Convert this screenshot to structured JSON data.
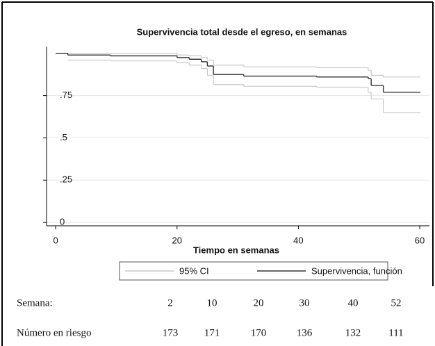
{
  "chart_data": {
    "type": "step",
    "title": "Supervivencia total desde el egreso, en semanas",
    "x_label": "Tiempo en semanas",
    "xlim": [
      -1.5,
      61.6
    ],
    "xticks": [
      0,
      20,
      40,
      60
    ],
    "ylim": [
      -0.02,
      1.04
    ],
    "yticks": [
      0,
      {
        "value": 0.25,
        "label": ".25"
      },
      {
        "value": 0.5,
        "label": ".5"
      },
      {
        "value": 0.75,
        "label": ".75"
      }
    ],
    "grid": true,
    "series": [
      {
        "name": "95% CI",
        "color": "#c8c8c8",
        "x": [
          2,
          9,
          20,
          22,
          24,
          25,
          26,
          31,
          43,
          51.5,
          52,
          54,
          60
        ],
        "values": [
          0.96,
          0.955,
          0.945,
          0.93,
          0.91,
          0.87,
          0.815,
          0.805,
          0.8,
          0.77,
          0.73,
          0.65,
          0.65
        ]
      },
      {
        "name": null,
        "color": "#c8c8c8",
        "x": [
          2,
          20,
          22,
          24,
          25,
          26,
          31,
          43,
          51.5,
          52,
          54,
          60
        ],
        "values": [
          1.0,
          0.99,
          0.985,
          0.975,
          0.96,
          0.93,
          0.92,
          0.915,
          0.9,
          0.87,
          0.86,
          0.86
        ]
      },
      {
        "name": "Supervivencia, función",
        "color": "#333333",
        "x": [
          0,
          2,
          9,
          20,
          22,
          24,
          25,
          26,
          31,
          43,
          51.5,
          52,
          54,
          60
        ],
        "values": [
          1.0,
          0.99,
          0.985,
          0.975,
          0.965,
          0.95,
          0.925,
          0.875,
          0.865,
          0.86,
          0.85,
          0.81,
          0.77,
          0.77
        ]
      }
    ]
  },
  "table": {
    "rows": [
      [
        "Semana:",
        "2",
        "10",
        "20",
        "30",
        "40",
        "52"
      ],
      [
        "Número en riesgo",
        "173",
        "171",
        "170",
        "136",
        "132",
        "111"
      ]
    ]
  }
}
